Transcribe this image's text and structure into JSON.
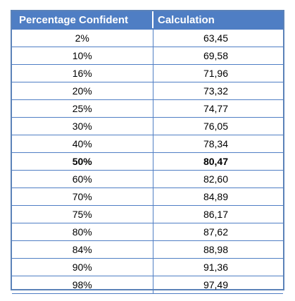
{
  "table": {
    "headers": [
      "Percentage Confident",
      "Calculation"
    ],
    "rows": [
      {
        "pct": "2%",
        "calc": "63,45"
      },
      {
        "pct": "10%",
        "calc": "69,58"
      },
      {
        "pct": "16%",
        "calc": "71,96"
      },
      {
        "pct": "20%",
        "calc": "73,32"
      },
      {
        "pct": "25%",
        "calc": "74,77"
      },
      {
        "pct": "30%",
        "calc": "76,05"
      },
      {
        "pct": "40%",
        "calc": "78,34"
      },
      {
        "pct": "50%",
        "calc": "80,47",
        "bold": true
      },
      {
        "pct": "60%",
        "calc": "82,60"
      },
      {
        "pct": "70%",
        "calc": "84,89"
      },
      {
        "pct": "75%",
        "calc": "86,17"
      },
      {
        "pct": "80%",
        "calc": "87,62"
      },
      {
        "pct": "84%",
        "calc": "88,98"
      },
      {
        "pct": "90%",
        "calc": "91,36"
      },
      {
        "pct": "98%",
        "calc": "97,49"
      }
    ]
  },
  "colors": {
    "header_bg": "#4f7ec4",
    "grid": "#4f7ec4"
  }
}
